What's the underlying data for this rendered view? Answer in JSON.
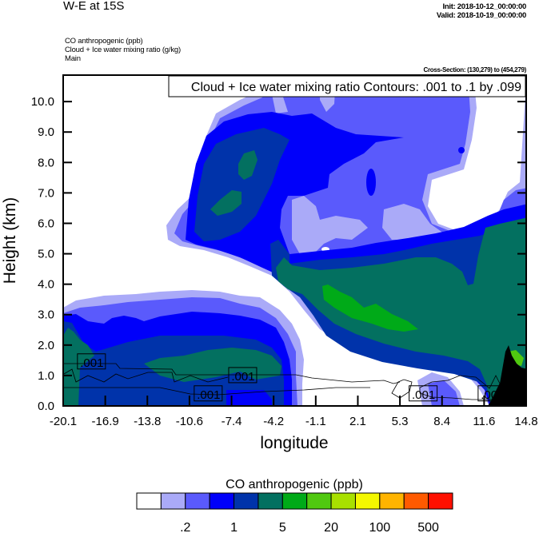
{
  "header": {
    "title": "W-E at 15S",
    "init": "Init: 2018-10-12_00:00:00",
    "valid": "Valid: 2018-10-19_00:00:00",
    "fields": [
      "CO anthropogenic   (ppb)",
      "Cloud + Ice water mixing ratio   (g/kg)",
      "Main"
    ],
    "cross_section": "Cross-Section: (130,279) to (454,279)"
  },
  "chart_data": {
    "type": "contour",
    "contour_info": "Cloud + Ice water mixing ratio Contours: .001 to .1 by .099",
    "xlabel": "longitude",
    "ylabel": "Height (km)",
    "xlim": [
      -20.1,
      14.8
    ],
    "ylim": [
      0,
      10.87
    ],
    "x_ticks": [
      "-20.1",
      "-16.9",
      "-13.8",
      "-10.6",
      "-7.4",
      "-4.2",
      "-1.1",
      "2.1",
      "5.3",
      "8.4",
      "11.6",
      "14.8"
    ],
    "y_ticks": [
      "0.0",
      "1.0",
      "2.0",
      "3.0",
      "4.0",
      "5.0",
      "6.0",
      "7.0",
      "8.0",
      "9.0",
      "10.0"
    ],
    "contour_labels": [
      ".001",
      ".001",
      ".001",
      ".001",
      ".001"
    ],
    "colorbar": {
      "title": "CO anthropogenic  (ppb)",
      "colors": [
        "#ffffff",
        "#aaaaf8",
        "#5a5afc",
        "#0000fa",
        "#0033aa",
        "#037060",
        "#00aa18",
        "#50c810",
        "#a8e000",
        "#f4f800",
        "#ffb400",
        "#ff5a00",
        "#ff1000"
      ],
      "labels": [
        ".2",
        "1",
        "5",
        "20",
        "100",
        "500"
      ]
    },
    "terrain_color": "#000000"
  }
}
